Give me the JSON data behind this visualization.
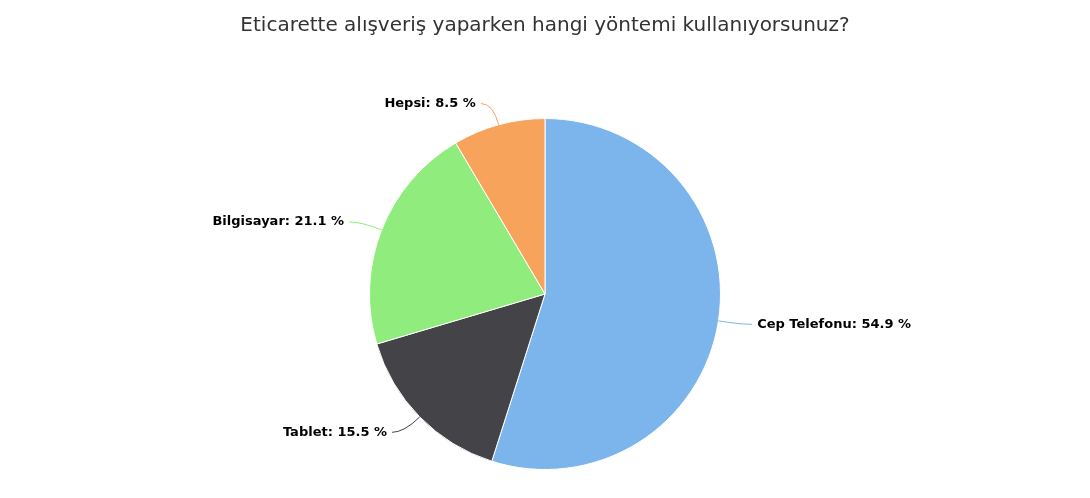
{
  "chart_data": {
    "type": "pie",
    "title": "Eticarette alışveriş yaparken hangi yöntemi kullanıyorsunuz?",
    "categories": [
      "Cep Telefonu",
      "Tablet",
      "Bilgisayar",
      "Hepsi"
    ],
    "values": [
      54.9,
      15.5,
      21.1,
      8.5
    ],
    "value_labels": [
      "54.9 %",
      "15.5 %",
      "21.1 %",
      "8.5 %"
    ],
    "colors": [
      "#7cb5ec",
      "#434348",
      "#90ed7d",
      "#f7a35c"
    ],
    "legend": false
  }
}
